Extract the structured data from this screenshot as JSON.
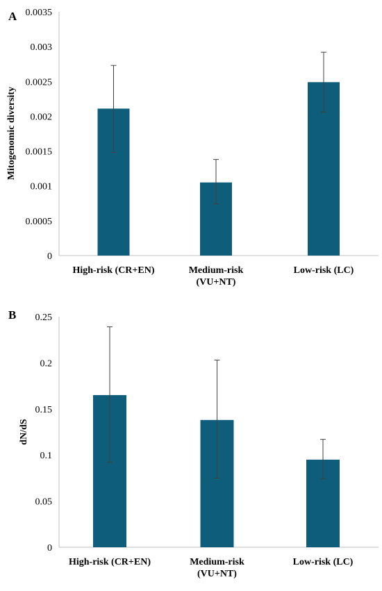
{
  "chart_data": [
    {
      "type": "bar",
      "panel_label": "A",
      "title": "",
      "ylabel": "Mitogenomic diversity",
      "xlabel": "",
      "ylim": [
        0,
        0.0035
      ],
      "yticks": [
        "0",
        "0.0005",
        "0.001",
        "0.0015",
        "0.002",
        "0.0025",
        "0.003",
        "0.0035"
      ],
      "categories": [
        [
          "High-risk (CR+EN)"
        ],
        [
          "Medium-risk",
          "(VU+NT)"
        ],
        [
          "Low-risk (LC)"
        ]
      ],
      "values": [
        0.00211,
        0.00105,
        0.00249
      ],
      "error_low": [
        0.00148,
        0.00074,
        0.00206
      ],
      "error_high": [
        0.00273,
        0.00138,
        0.00292
      ],
      "color": "#0e5e7b",
      "grid": false
    },
    {
      "type": "bar",
      "panel_label": "B",
      "title": "",
      "ylabel": "dN/dS",
      "xlabel": "",
      "ylim": [
        0,
        0.25
      ],
      "yticks": [
        "0",
        "0.05",
        "0.1",
        "0.15",
        "0.2",
        "0.25"
      ],
      "categories": [
        [
          "High-risk (CR+EN)"
        ],
        [
          "Medium-risk",
          "(VU+NT)"
        ],
        [
          "Low-risk (LC)"
        ]
      ],
      "values": [
        0.165,
        0.138,
        0.095
      ],
      "error_low": [
        0.092,
        0.075,
        0.074
      ],
      "error_high": [
        0.239,
        0.203,
        0.117
      ],
      "color": "#0e5e7b",
      "grid": false
    }
  ]
}
